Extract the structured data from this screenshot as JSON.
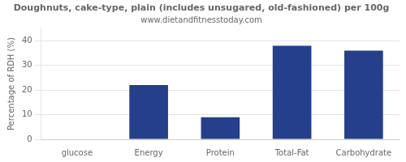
{
  "chart_data": {
    "type": "bar",
    "title": "Doughnuts, cake-type, plain (includes unsugared, old-fashioned) per 100g",
    "subtitle": "www.dietandfitnesstoday.com",
    "categories": [
      "glucose",
      "Energy",
      "Protein",
      "Total-Fat",
      "Carbohydrate"
    ],
    "values": [
      0,
      22,
      9,
      38,
      36
    ],
    "color": "#253f8a",
    "ylabel": "Percentage of RDH (%)",
    "ylim": [
      0,
      45
    ],
    "yticks": [
      0,
      10,
      20,
      30,
      40
    ],
    "grid": true
  }
}
